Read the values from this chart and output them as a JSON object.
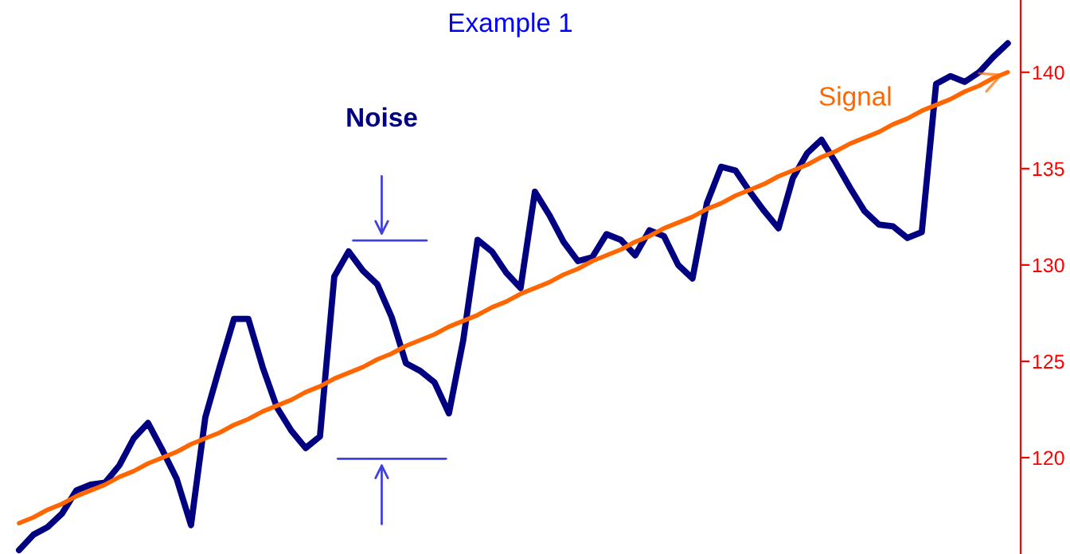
{
  "chart_data": {
    "type": "line",
    "title": "Example 1",
    "annotations": [
      "Noise"
    ],
    "categories": [
      null,
      null,
      null,
      null,
      null,
      null,
      null,
      null,
      null,
      null,
      null,
      null,
      null,
      null,
      null,
      null,
      null,
      null,
      null,
      null,
      null,
      null,
      null,
      null,
      null,
      null,
      null,
      null,
      null,
      null,
      null,
      null,
      null,
      null,
      null,
      null,
      null,
      null,
      null,
      null,
      null,
      null,
      null,
      null,
      null,
      null,
      null,
      null,
      null,
      null,
      null,
      null,
      null,
      null,
      null,
      null,
      null,
      null,
      null,
      null,
      null,
      null,
      null,
      null,
      null,
      null,
      null,
      null,
      null,
      null
    ],
    "series": [
      {
        "color": "#000080",
        "values": [
          115.2,
          116.0,
          116.4,
          117.1,
          118.3,
          118.6,
          118.7,
          119.6,
          121.0,
          121.8,
          120.4,
          118.9,
          116.5,
          122.1,
          124.7,
          127.2,
          127.2,
          124.7,
          122.6,
          121.4,
          120.5,
          121.1,
          129.4,
          130.7,
          129.7,
          129.0,
          127.3,
          124.9,
          124.5,
          123.9,
          122.3,
          126.1,
          131.3,
          130.7,
          129.6,
          128.8,
          133.8,
          132.6,
          131.2,
          130.2,
          130.4,
          131.6,
          131.3,
          130.5,
          131.8,
          131.5,
          130.0,
          129.3,
          133.2,
          135.1,
          134.9,
          133.8,
          132.8,
          131.9,
          134.5,
          135.8,
          136.5,
          135.3,
          134.0,
          132.8,
          132.1,
          132.0,
          131.4,
          131.7,
          139.4,
          139.8,
          139.5,
          140.0,
          140.8,
          141.5
        ]
      },
      {
        "name": "Signal",
        "type": "line",
        "color": "#ff6600",
        "values": [
          116.6,
          116.9,
          117.3,
          117.6,
          118.0,
          118.3,
          118.6,
          119.0,
          119.3,
          119.7,
          120.0,
          120.3,
          120.7,
          121.0,
          121.3,
          121.7,
          122.0,
          122.4,
          122.7,
          123.0,
          123.4,
          123.7,
          124.1,
          124.4,
          124.7,
          125.1,
          125.4,
          125.8,
          126.1,
          126.4,
          126.8,
          127.1,
          127.4,
          127.8,
          128.1,
          128.5,
          128.8,
          129.1,
          129.5,
          129.8,
          130.2,
          130.5,
          130.8,
          131.2,
          131.5,
          131.9,
          132.2,
          132.5,
          132.9,
          133.2,
          133.6,
          133.9,
          134.2,
          134.6,
          134.9,
          135.2,
          135.6,
          135.9,
          136.3,
          136.6,
          136.9,
          137.3,
          137.6,
          138.0,
          138.3,
          138.6,
          139.0,
          139.3,
          139.7,
          140.0
        ]
      }
    ],
    "ylim": [
      115,
      143.75
    ],
    "yticks": [
      120,
      125,
      130,
      135,
      140
    ],
    "tick_labels": "y",
    "grid": false,
    "legend": false
  }
}
